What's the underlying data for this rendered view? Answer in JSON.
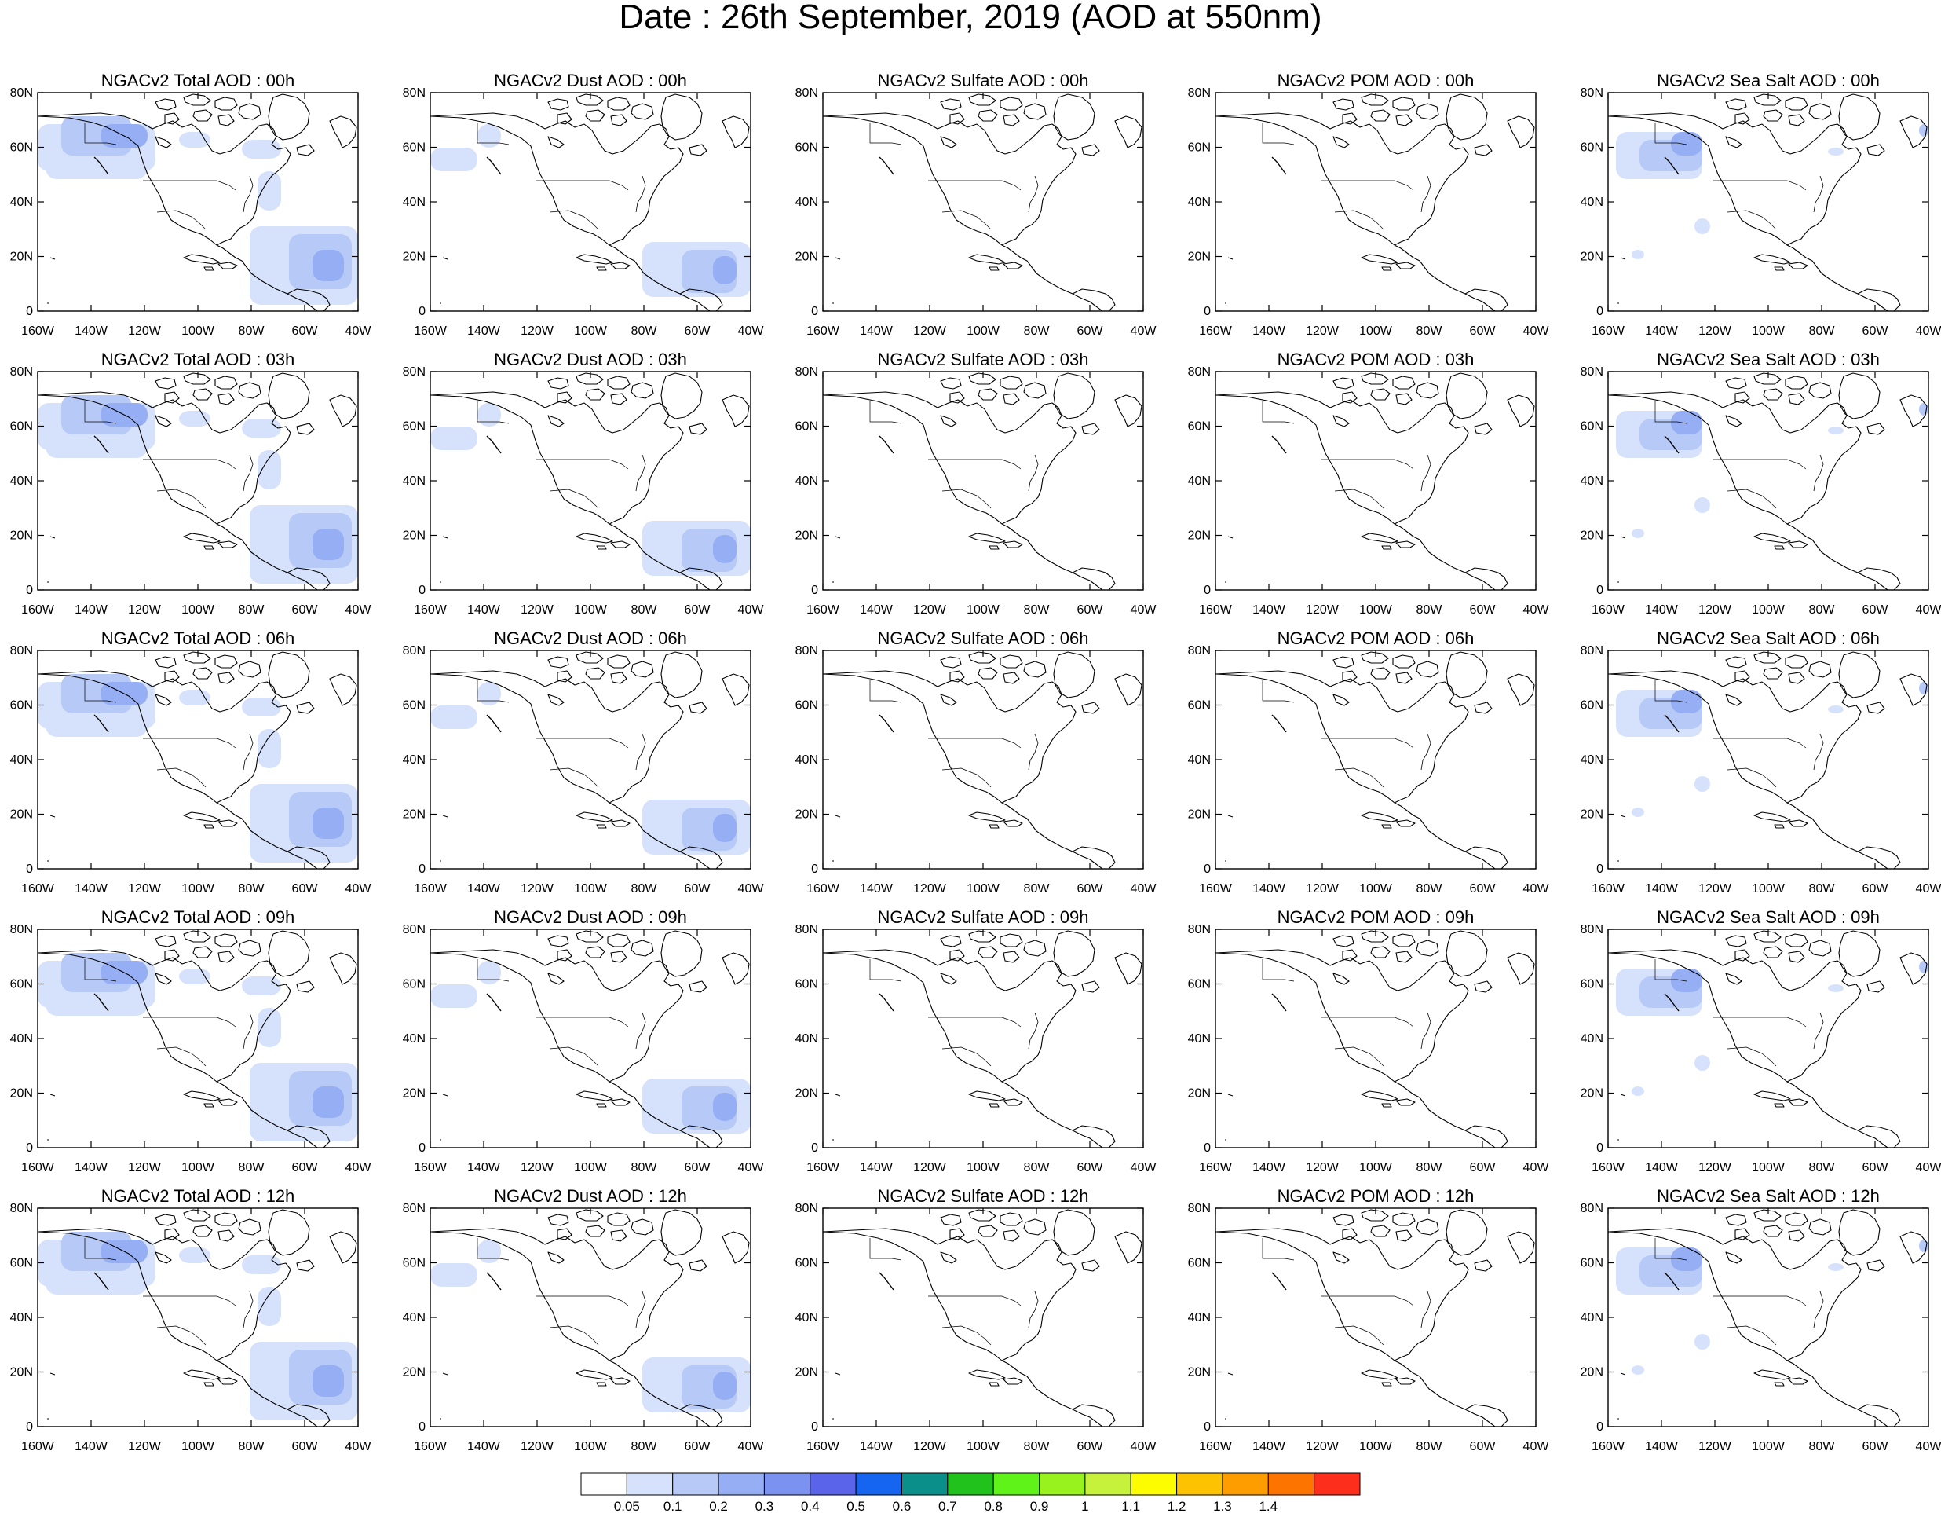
{
  "title": "Date : 26th September, 2019 (AOD at 550nm)",
  "panel_titles": [
    [
      "NGACv2 Total AOD : 00h",
      "NGACv2 Dust AOD : 00h",
      "NGACv2 Sulfate AOD : 00h",
      "NGACv2 POM AOD : 00h",
      "NGACv2 Sea Salt AOD : 00h"
    ],
    [
      "NGACv2 Total AOD : 03h",
      "NGACv2 Dust AOD : 03h",
      "NGACv2 Sulfate AOD : 03h",
      "NGACv2 POM AOD : 03h",
      "NGACv2 Sea Salt AOD : 03h"
    ],
    [
      "NGACv2 Total AOD : 06h",
      "NGACv2 Dust AOD : 06h",
      "NGACv2 Sulfate AOD : 06h",
      "NGACv2 POM AOD : 06h",
      "NGACv2 Sea Salt AOD : 06h"
    ],
    [
      "NGACv2 Total AOD : 09h",
      "NGACv2 Dust AOD : 09h",
      "NGACv2 Sulfate AOD : 09h",
      "NGACv2 POM AOD : 09h",
      "NGACv2 Sea Salt  AOD : 09h"
    ],
    [
      "NGACv2 Total AOD  : 12h",
      "NGACv2 Dust AOD : 12h",
      "NGACv2 Sulfate AOD : 12h",
      "NGACv2 POM  AOD : 12h",
      "NGACv2 Sea Salt  AOD : 12h"
    ]
  ],
  "lon_ticks": [
    "160W",
    "140W",
    "120W",
    "100W",
    "80W",
    "60W",
    "40W"
  ],
  "lat_ticks": [
    "80N",
    "60N",
    "40N",
    "20N",
    "0"
  ],
  "colorbar": {
    "labels": [
      "0.05",
      "0.1",
      "0.2",
      "0.3",
      "0.4",
      "0.5",
      "0.6",
      "0.7",
      "0.8",
      "0.9",
      "1",
      "1.1",
      "1.2",
      "1.3",
      "1.4"
    ],
    "colors": [
      "#ffffff",
      "#d6e2fb",
      "#b6c9f7",
      "#96aef4",
      "#7b92f0",
      "#5a64ea",
      "#1565f0",
      "#0a8f8a",
      "#22c21c",
      "#5ff31a",
      "#97f21e",
      "#c6f23b",
      "#fdfd00",
      "#fdc300",
      "#fd9d00",
      "#fd7400",
      "#fd2e1b"
    ]
  }
}
